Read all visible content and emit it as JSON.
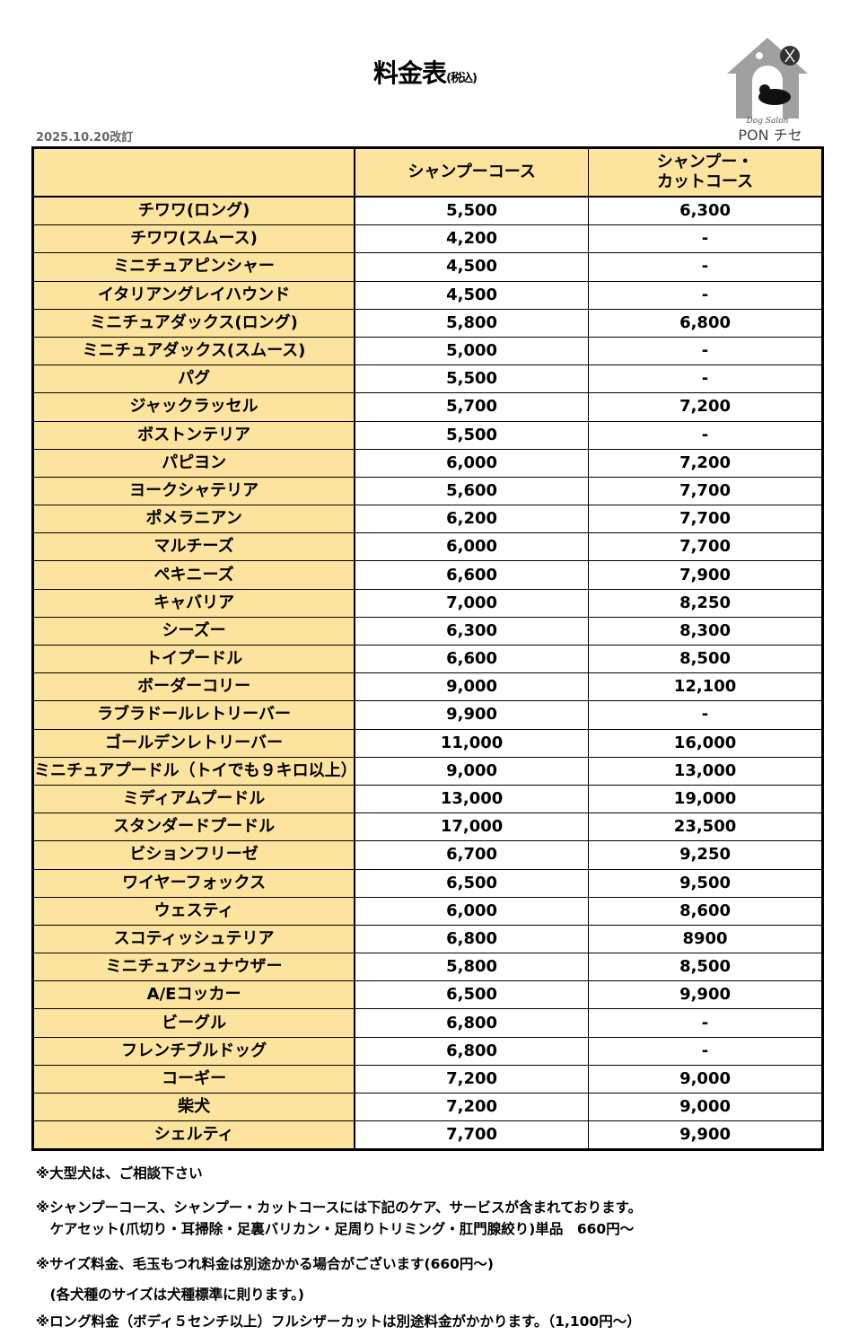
{
  "title": "料金表",
  "title_suffix": "(税込)",
  "revision_date": "2025.10.20改訂",
  "logo": {
    "script_text": "Dog Salon",
    "name": "PON チセ"
  },
  "table": {
    "headers": [
      "",
      "シャンプーコース",
      "シャンプー・\nカットコース"
    ],
    "rows": [
      [
        "チワワ(ロング)",
        "5,500",
        "6,300"
      ],
      [
        "チワワ(スムース)",
        "4,200",
        "-"
      ],
      [
        "ミニチュアピンシャー",
        "4,500",
        "-"
      ],
      [
        "イタリアングレイハウンド",
        "4,500",
        "-"
      ],
      [
        "ミニチュアダックス(ロング)",
        "5,800",
        "6,800"
      ],
      [
        "ミニチュアダックス(スムース)",
        "5,000",
        "-"
      ],
      [
        "パグ",
        "5,500",
        "-"
      ],
      [
        "ジャックラッセル",
        "5,700",
        "7,200"
      ],
      [
        "ボストンテリア",
        "5,500",
        "-"
      ],
      [
        "パピヨン",
        "6,000",
        "7,200"
      ],
      [
        "ヨークシャテリア",
        "5,600",
        "7,700"
      ],
      [
        "ポメラニアン",
        "6,200",
        "7,700"
      ],
      [
        "マルチーズ",
        "6,000",
        "7,700"
      ],
      [
        "ペキニーズ",
        "6,600",
        "7,900"
      ],
      [
        "キャバリア",
        "7,000",
        "8,250"
      ],
      [
        "シーズー",
        "6,300",
        "8,300"
      ],
      [
        "トイプードル",
        "6,600",
        "8,500"
      ],
      [
        "ボーダーコリー",
        "9,000",
        "12,100"
      ],
      [
        "ラブラドールレトリーバー",
        "9,900",
        "-"
      ],
      [
        "ゴールデンレトリーバー",
        "11,000",
        "16,000"
      ],
      [
        "ミニチュアプードル（トイでも９キロ以上）",
        "9,000",
        "13,000"
      ],
      [
        "ミディアムプードル",
        "13,000",
        "19,000"
      ],
      [
        "スタンダードプードル",
        "17,000",
        "23,500"
      ],
      [
        "ビションフリーゼ",
        "6,700",
        "9,250"
      ],
      [
        "ワイヤーフォックス",
        "6,500",
        "9,500"
      ],
      [
        "ウェスティ",
        "6,000",
        "8,600"
      ],
      [
        "スコティッシュテリア",
        "6,800",
        "8900"
      ],
      [
        "ミニチュアシュナウザー",
        "5,800",
        "8,500"
      ],
      [
        "A/Eコッカー",
        "6,500",
        "9,900"
      ],
      [
        "ビーグル",
        "6,800",
        "-"
      ],
      [
        "フレンチブルドッグ",
        "6,800",
        "-"
      ],
      [
        "コーギー",
        "7,200",
        "9,000"
      ],
      [
        "柴犬",
        "7,200",
        "9,000"
      ],
      [
        "シェルティ",
        "7,700",
        "9,900"
      ]
    ]
  },
  "notes": [
    "※大型犬は、ご相談下さい",
    "※シャンプーコース、シャンプー・カットコースには下記のケア、サービスが含まれております。",
    "　ケアセット(爪切り・耳掃除・足裏バリカン・足周りトリミング・肛門腺絞り)単品　660円～",
    "※サイズ料金、毛玉もつれ料金は別途かかる場合がございます(660円～)",
    "　(各犬種のサイズは犬種標準に則ります。)",
    "※ロング料金（ボディ５センチ以上）フルシザーカットは別途料金がかかります。（1,100円～）"
  ],
  "colors": {
    "header_bg": "#fde49e",
    "border": "#000000"
  }
}
